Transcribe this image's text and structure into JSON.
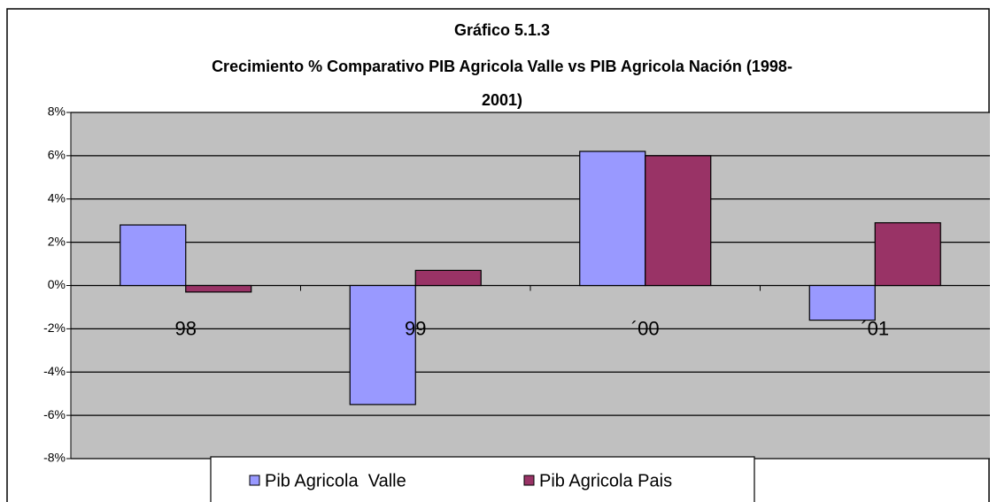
{
  "chart_data": {
    "type": "bar",
    "title": "Gráfico 5.1.3",
    "subtitle": "Crecimiento % Comparativo PIB Agricola Valle vs PIB Agricola Nación (1998-2001)",
    "categories": [
      "98",
      "99",
      "´00",
      "´01"
    ],
    "series": [
      {
        "name": "Pib Agricola  Valle",
        "color": "#9999ff",
        "values": [
          2.8,
          -5.5,
          6.2,
          -1.6
        ]
      },
      {
        "name": "Pib Agricola Pais",
        "color": "#993366",
        "values": [
          -0.3,
          0.7,
          6.0,
          2.9
        ]
      }
    ],
    "ylim": [
      -8,
      8
    ],
    "yticks": [
      {
        "value": -8,
        "label": "-8%"
      },
      {
        "value": -6,
        "label": "-6%"
      },
      {
        "value": -4,
        "label": "-4%"
      },
      {
        "value": -2,
        "label": "-2%"
      },
      {
        "value": 0,
        "label": "0%"
      },
      {
        "value": 2,
        "label": "2%"
      },
      {
        "value": 4,
        "label": "4%"
      },
      {
        "value": 6,
        "label": "6%"
      },
      {
        "value": 8,
        "label": "8%"
      }
    ],
    "grid": true,
    "legend": "bottom"
  }
}
